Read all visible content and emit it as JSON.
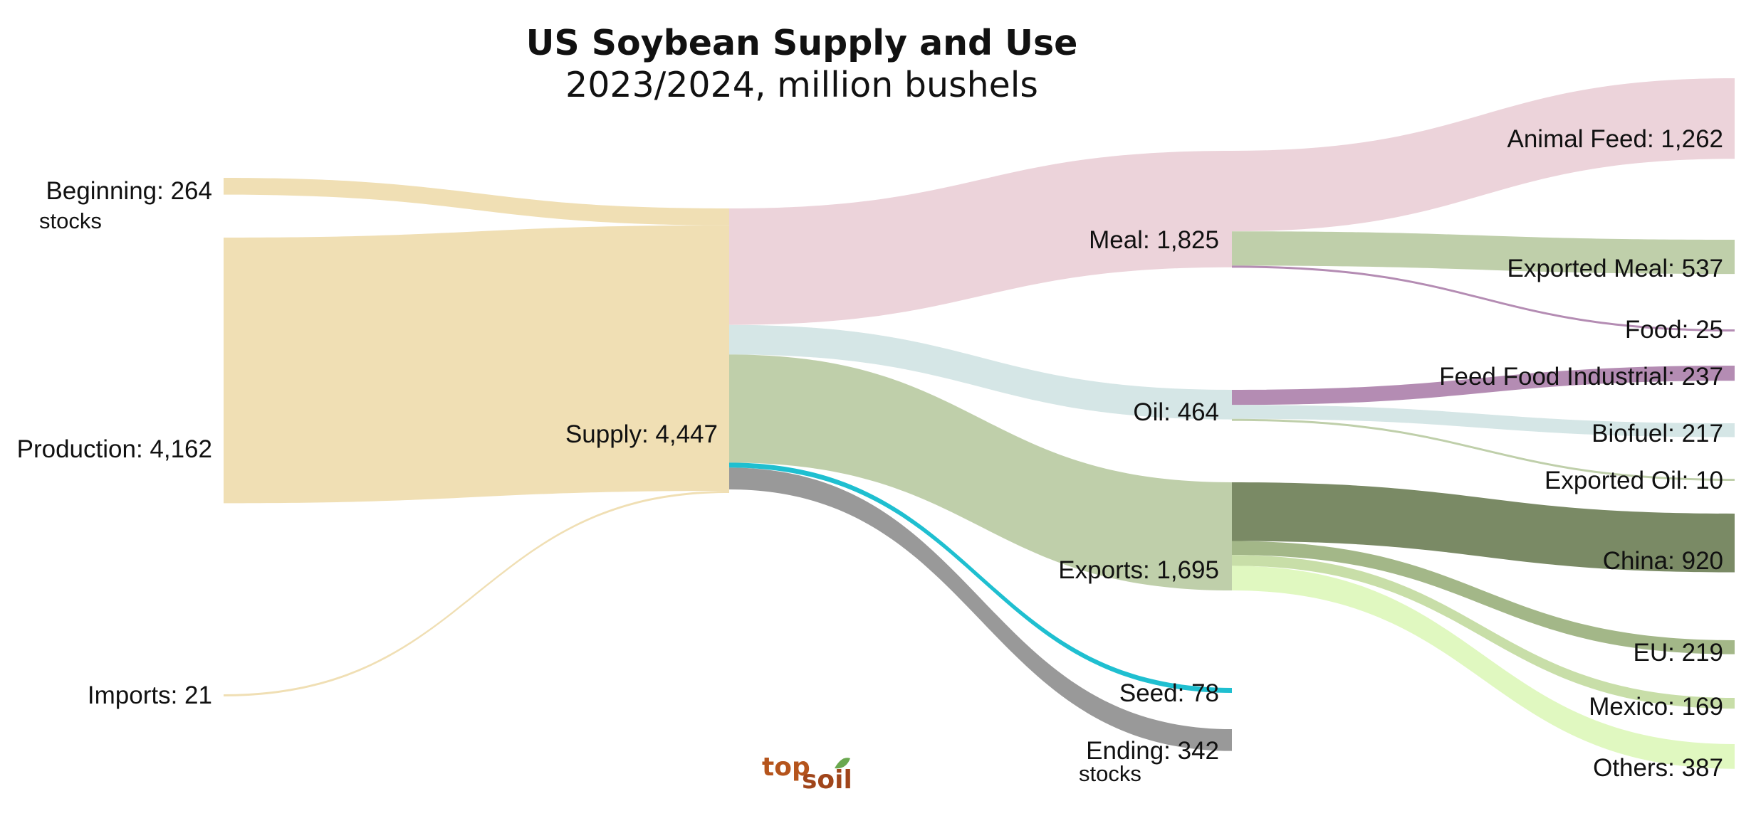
{
  "chart_data": {
    "type": "sankey",
    "title": "US Soybean Supply and Use",
    "subtitle": "2023/2024, million bushels",
    "nodes": [
      {
        "id": "beginning",
        "name": "Beginning",
        "sublabel": "stocks",
        "value": 264,
        "color": "#f0dfb4"
      },
      {
        "id": "production",
        "name": "Production",
        "value": 4162,
        "color": "#f0dfb4"
      },
      {
        "id": "imports",
        "name": "Imports",
        "value": 21,
        "color": "#f0dfb4"
      },
      {
        "id": "supply",
        "name": "Supply",
        "value": 4447,
        "color": "#f0dfb4"
      },
      {
        "id": "meal",
        "name": "Meal",
        "value": 1825,
        "color": "#ecd3da"
      },
      {
        "id": "oil",
        "name": "Oil",
        "value": 464,
        "color": "#d5e6e6"
      },
      {
        "id": "exports",
        "name": "Exports",
        "value": 1695,
        "color": "#bfcfaa"
      },
      {
        "id": "seed",
        "name": "Seed",
        "value": 78,
        "color": "#1fbfd0"
      },
      {
        "id": "ending",
        "name": "Ending",
        "sublabel": "stocks",
        "value": 342,
        "color": "#999999"
      },
      {
        "id": "animal_feed",
        "name": "Animal Feed",
        "value": 1262,
        "color": "#ecd3da"
      },
      {
        "id": "exported_meal",
        "name": "Exported Meal",
        "value": 537,
        "color": "#bfcfaa"
      },
      {
        "id": "food",
        "name": "Food",
        "value": 25,
        "color": "#b48cb3"
      },
      {
        "id": "ffi",
        "name": "Feed Food Industrial",
        "value": 237,
        "color": "#b48cb3"
      },
      {
        "id": "biofuel",
        "name": "Biofuel",
        "value": 217,
        "color": "#d5e6e6"
      },
      {
        "id": "exported_oil",
        "name": "Exported Oil",
        "value": 10,
        "color": "#bfcfaa"
      },
      {
        "id": "china",
        "name": "China",
        "value": 920,
        "color": "#7a8a65"
      },
      {
        "id": "eu",
        "name": "EU",
        "value": 219,
        "color": "#a3b788"
      },
      {
        "id": "mexico",
        "name": "Mexico",
        "value": 169,
        "color": "#c8dea8"
      },
      {
        "id": "others",
        "name": "Others",
        "value": 387,
        "color": "#e0f8c0"
      }
    ],
    "links": [
      {
        "source": "beginning",
        "target": "supply",
        "value": 264
      },
      {
        "source": "production",
        "target": "supply",
        "value": 4162
      },
      {
        "source": "imports",
        "target": "supply",
        "value": 21
      },
      {
        "source": "supply",
        "target": "meal",
        "value": 1825
      },
      {
        "source": "supply",
        "target": "oil",
        "value": 464
      },
      {
        "source": "supply",
        "target": "exports",
        "value": 1695
      },
      {
        "source": "supply",
        "target": "seed",
        "value": 78
      },
      {
        "source": "supply",
        "target": "ending",
        "value": 342
      },
      {
        "source": "meal",
        "target": "animal_feed",
        "value": 1262
      },
      {
        "source": "meal",
        "target": "exported_meal",
        "value": 537
      },
      {
        "source": "meal",
        "target": "food",
        "value": 25
      },
      {
        "source": "oil",
        "target": "ffi",
        "value": 237
      },
      {
        "source": "oil",
        "target": "biofuel",
        "value": 217
      },
      {
        "source": "oil",
        "target": "exported_oil",
        "value": 10
      },
      {
        "source": "exports",
        "target": "china",
        "value": 920
      },
      {
        "source": "exports",
        "target": "eu",
        "value": 219
      },
      {
        "source": "exports",
        "target": "mexico",
        "value": 169
      },
      {
        "source": "exports",
        "target": "others",
        "value": 387
      }
    ]
  },
  "logo": {
    "top": "top",
    "soil": "soil",
    "top_color": "#b5541c",
    "soil_color": "#a0451a",
    "leaf_color": "#6aa84f"
  }
}
